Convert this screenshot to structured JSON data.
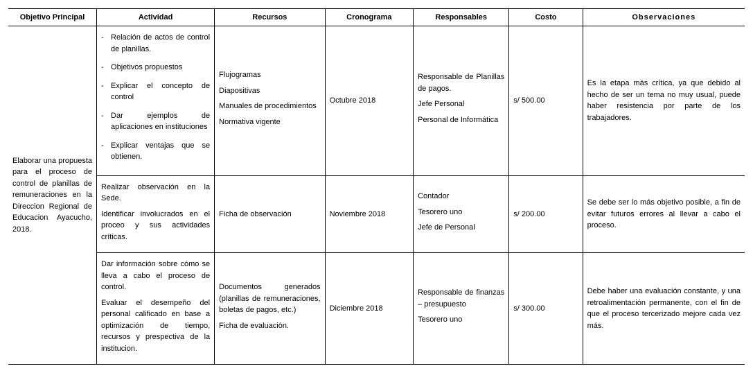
{
  "headers": {
    "c1": "Objetivo Principal",
    "c2": "Actividad",
    "c3": "Recursos",
    "c4": "Cronograma",
    "c5": "Responsables",
    "c6": "Costo",
    "c7": "Observaciones"
  },
  "objetivo": "Elaborar una propuesta para el proceso de control de planillas de remuneraciones en la Direccion Regional de Educacion Ayacucho, 2018.",
  "rows": [
    {
      "actividad_bullets": [
        "Relación de actos de control de planillas.",
        "Objetivos propuestos",
        "Explicar el concepto de control",
        "Dar ejemplos de aplicaciones en instituciones",
        "Explicar ventajas que se obtienen."
      ],
      "recursos": "Flujogramas\nDiapositivas\nManuales de procedimientos\nNormativa vigente",
      "cronograma": "Octubre 2018",
      "responsables": "Responsable de Planillas de pagos.\nJefe Personal\nPersonal de Informática",
      "costo": "s/ 500.00",
      "observaciones": "Es la etapa más crítica, ya que debido al hecho de ser un tema no muy usual, puede haber resistencia por parte de los trabajadores."
    },
    {
      "actividad_text": "Realizar observación en la Sede.\nIdentificar involucrados en el proceo y sus actividades críticas.",
      "recursos": "Ficha de observación",
      "cronograma": "Noviembre 2018",
      "responsables": "Contador\nTesorero uno\nJefe de Personal",
      "costo": "s/ 200.00",
      "observaciones": "Se debe ser lo más objetivo posible, a fin de evitar futuros errores al llevar a cabo el proceso."
    },
    {
      "actividad_text": "Dar información sobre cómo se lleva a cabo el proceso de control.\nEvaluar el desempeño del personal calificado en base a optimización de tiempo, recursos y prespectiva de la institucion.",
      "recursos": "Documentos generados (planillas de remuneraciones, boletas de pagos, etc.)\nFicha de evaluación.",
      "cronograma": "Diciembre 2018",
      "responsables": "Responsable de finanzas – presupuesto\nTesorero uno",
      "costo": "s/ 300.00",
      "observaciones": "Debe haber una evaluación constante, y una retroalimentación permanente, con el fin de que el proceso tercerizado mejore cada vez más."
    }
  ]
}
